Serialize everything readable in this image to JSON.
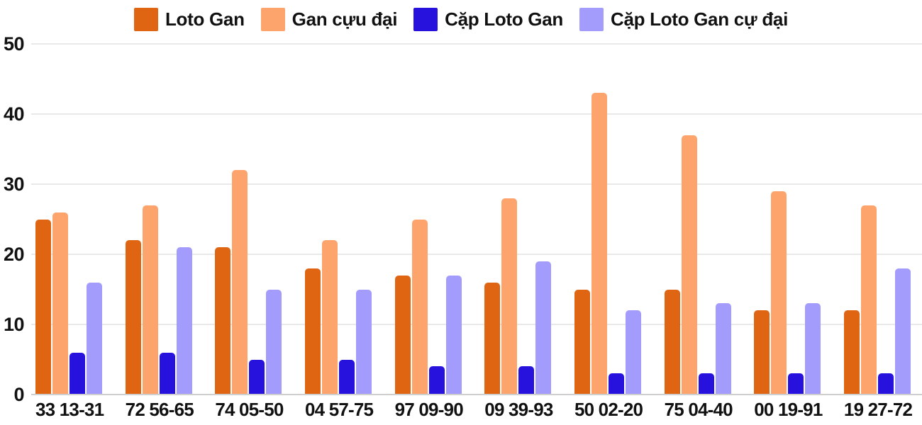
{
  "chart_data": {
    "type": "bar",
    "title": "",
    "xlabel": "",
    "ylabel": "",
    "ylim": [
      0,
      50
    ],
    "yticks": [
      "0",
      "10",
      "20",
      "30",
      "40",
      "50"
    ],
    "grid": true,
    "legend_position": "top",
    "background_color": "#ffffff",
    "gridline_color": "#e9e9e9",
    "axis_text_color": "#111111",
    "categories": [
      "33 13-31",
      "72 56-65",
      "74 05-50",
      "04 57-75",
      "97 09-90",
      "09 39-93",
      "50 02-20",
      "75 04-40",
      "00 19-91",
      "19 27-72"
    ],
    "series": [
      {
        "name": "Loto Gan",
        "color": "#df6513",
        "values": [
          25,
          22,
          21,
          18,
          17,
          16,
          15,
          15,
          12,
          12
        ]
      },
      {
        "name": "Gan cựu đại",
        "color": "#fca46c",
        "values": [
          26,
          27,
          32,
          22,
          25,
          28,
          43,
          37,
          29,
          27
        ]
      },
      {
        "name": "Cặp Loto Gan",
        "color": "#2711dd",
        "values": [
          6,
          6,
          5,
          5,
          4,
          4,
          3,
          3,
          3,
          3
        ]
      },
      {
        "name": "Cặp Loto Gan cự đại",
        "color": "#a39cfc",
        "values": [
          16,
          21,
          15,
          15,
          17,
          19,
          12,
          13,
          13,
          18
        ]
      }
    ]
  }
}
